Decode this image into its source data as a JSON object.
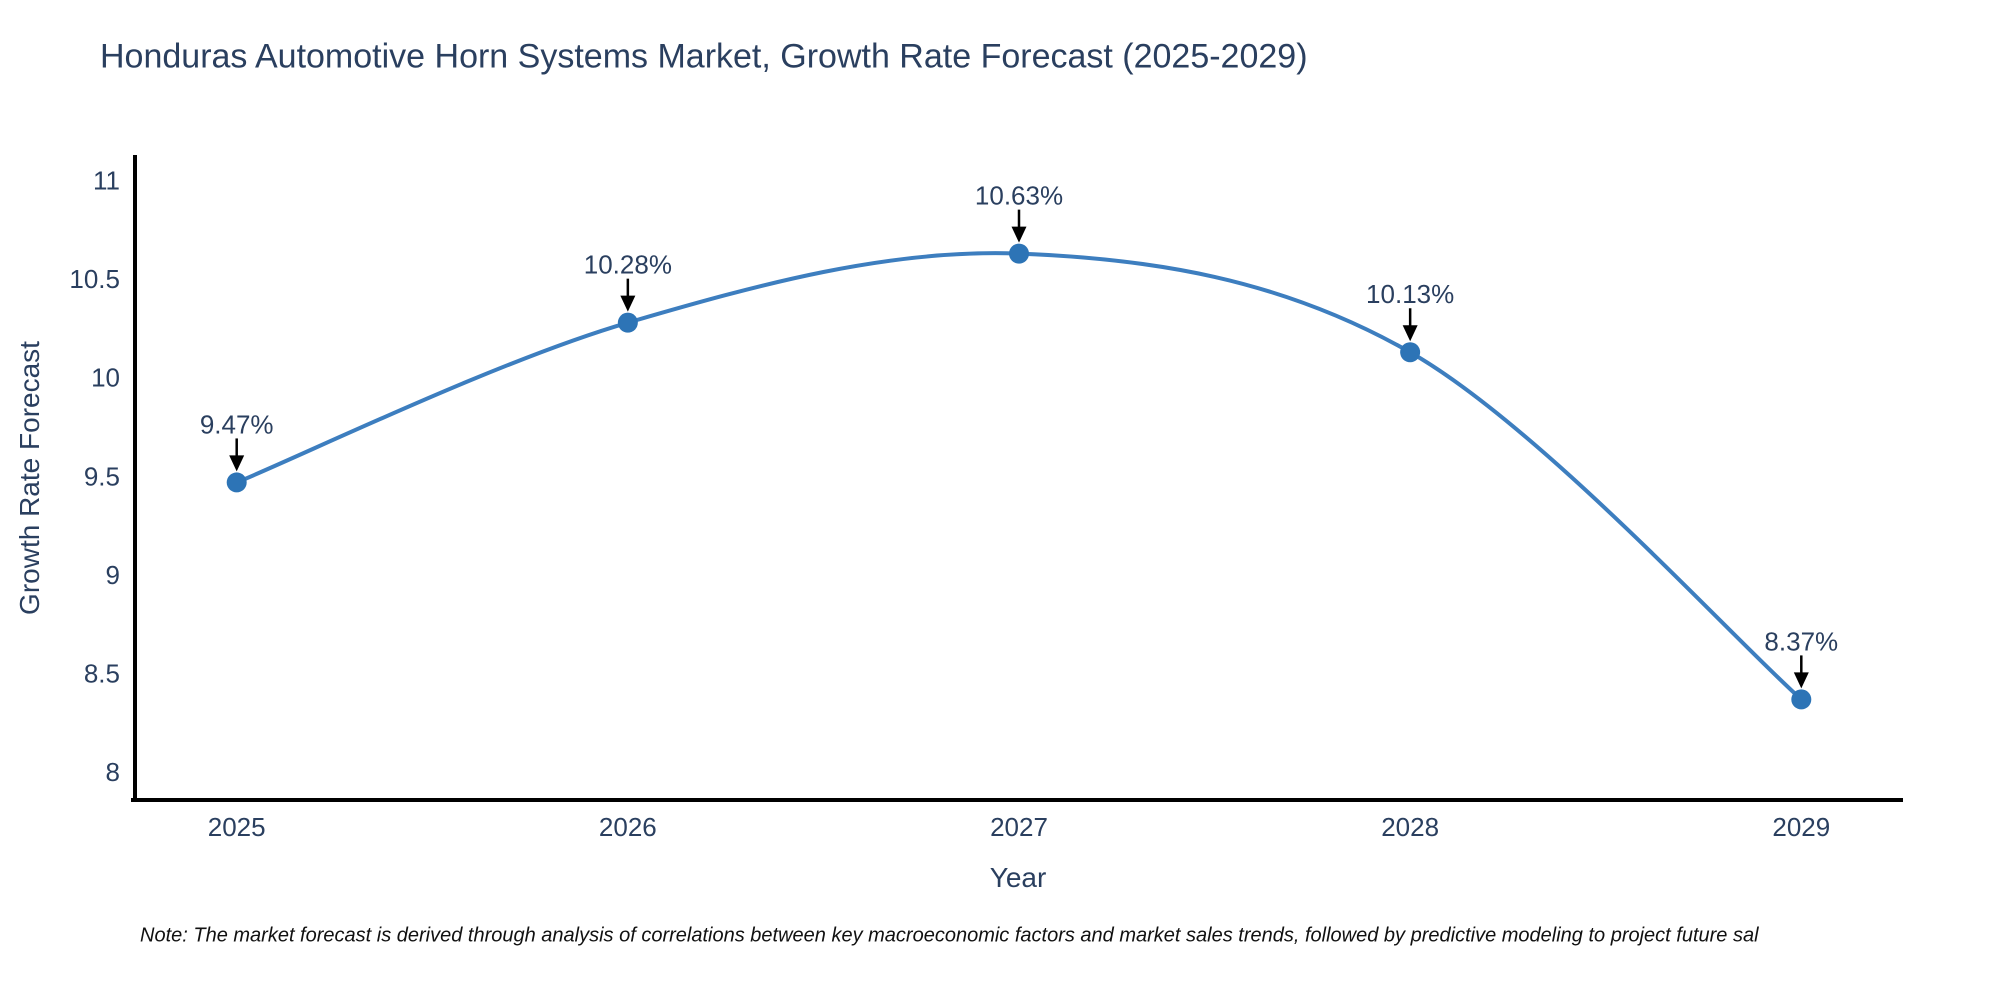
{
  "page": {
    "background": "#ffffff"
  },
  "chart_data": {
    "type": "line",
    "title": "Honduras Automotive Horn Systems Market, Growth Rate Forecast (2025-2029)",
    "xlabel": "Year",
    "ylabel": "Growth Rate Forecast",
    "x": [
      2025,
      2026,
      2027,
      2028,
      2029
    ],
    "values": [
      9.47,
      10.28,
      10.63,
      10.13,
      8.37
    ],
    "point_labels": [
      "9.47%",
      "10.28%",
      "10.63%",
      "10.13%",
      "8.37%"
    ],
    "xticks": [
      "2025",
      "2026",
      "2027",
      "2028",
      "2029"
    ],
    "yticks": [
      8,
      8.5,
      9,
      9.5,
      10,
      10.5,
      11
    ],
    "ytick_labels": [
      "8",
      "8.5",
      "9",
      "9.5",
      "10",
      "10.5",
      "11"
    ],
    "xlim": [
      2024.74,
      2029.26
    ],
    "ylim": [
      7.86,
      11.13
    ],
    "line_shape": "spline",
    "grid": false,
    "legend": "none",
    "colors": {
      "line": "#3d7ebf",
      "marker": "#2d74b6",
      "axis": "#000000",
      "text": "#2a3f5f",
      "annotation_text": "#2a3f5f",
      "annotation_arrow": "#000000"
    }
  },
  "footnote": {
    "text": "Note: The market forecast is derived through analysis of correlations between key macroeconomic factors and market sales trends, followed by predictive modeling to project future sal"
  }
}
